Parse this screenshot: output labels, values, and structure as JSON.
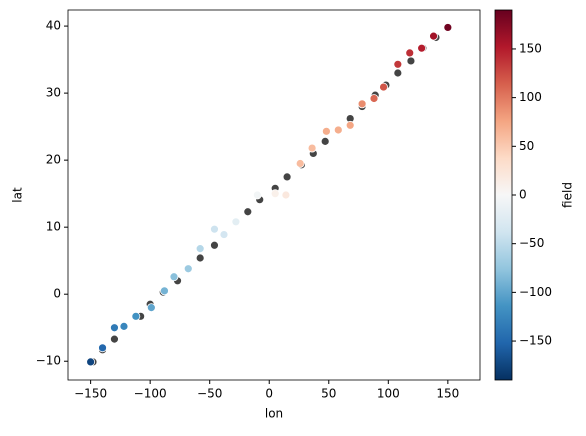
{
  "chart_data": {
    "type": "scatter",
    "x_label": "lon",
    "y_label": "lat",
    "colorbar_label": "field",
    "xlim": [
      -169,
      177
    ],
    "ylim": [
      -12.8,
      42.4
    ],
    "xticks": [
      {
        "value": -150,
        "label": "−150"
      },
      {
        "value": -100,
        "label": "−100"
      },
      {
        "value": -50,
        "label": "−50"
      },
      0,
      50,
      100,
      150
    ],
    "yticks": [
      {
        "value": -10,
        "label": "−10"
      },
      0,
      10,
      20,
      30,
      40
    ],
    "clim": [
      -190,
      190
    ],
    "cticks": [
      {
        "value": -150,
        "label": "−150"
      },
      {
        "value": -100,
        "label": "−100"
      },
      {
        "value": -50,
        "label": "−50"
      },
      0,
      50,
      100,
      150
    ],
    "colormap": [
      "#053061",
      "#2166ac",
      "#4393c3",
      "#92c5de",
      "#d1e5f0",
      "#f7f7f7",
      "#fddbc7",
      "#f4a582",
      "#d6604d",
      "#b2182b",
      "#67001f"
    ],
    "series": [
      {
        "color": "#444444",
        "x": [
          -148,
          -140,
          -130,
          -108,
          -100,
          -89,
          -77,
          -58,
          -46,
          -18,
          -8,
          5,
          15,
          27,
          37,
          47,
          68,
          78,
          89,
          98,
          108,
          119,
          129,
          140
        ],
        "y": [
          -10.1,
          -8.3,
          -6.7,
          -3.3,
          -1.5,
          0.3,
          2,
          5.4,
          7.3,
          12.3,
          14.1,
          15.8,
          17.5,
          19.3,
          21,
          22.8,
          26.2,
          28,
          29.7,
          31.2,
          33,
          34.8,
          36.7,
          38.3
        ]
      },
      {
        "x": [
          -150,
          -140,
          -130,
          -122,
          -112,
          -99,
          -88,
          -80,
          -68,
          -58,
          -46,
          -38,
          -28,
          -10,
          5,
          14,
          26,
          36,
          48,
          58,
          68,
          78,
          88,
          96,
          108,
          118,
          128,
          138,
          150
        ],
        "y": [
          -10.1,
          -8,
          -5,
          -4.8,
          -3.3,
          -2,
          0.5,
          2.6,
          3.8,
          6.8,
          9.7,
          8.9,
          10.8,
          14.8,
          15,
          14.8,
          19.5,
          21.8,
          24.3,
          24.5,
          25.2,
          28.4,
          29.2,
          30.9,
          34.3,
          36,
          36.7,
          38.5,
          39.8
        ],
        "field": [
          -175,
          -150,
          -135,
          -125,
          -115,
          -100,
          -90,
          -80,
          -70,
          -55,
          -40,
          -35,
          -20,
          -5,
          10,
          20,
          60,
          60,
          70,
          70,
          75,
          90,
          110,
          120,
          135,
          140,
          150,
          160,
          185
        ]
      }
    ]
  }
}
